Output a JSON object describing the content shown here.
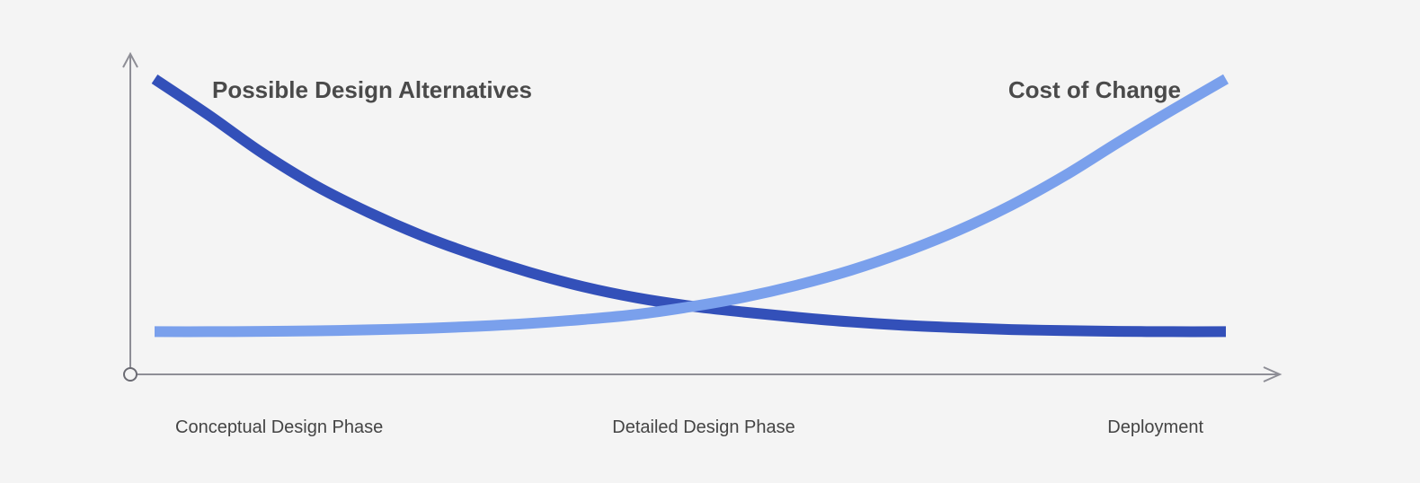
{
  "chart_data": {
    "type": "line",
    "title": "",
    "xlabel": "",
    "ylabel": "",
    "categories": [
      "Conceptual Design Phase",
      "Detailed Design Phase",
      "Deployment"
    ],
    "grid": false,
    "legend": "none",
    "x": [
      0,
      0.05,
      0.1,
      0.15,
      0.2,
      0.25,
      0.3,
      0.35,
      0.4,
      0.45,
      0.5,
      0.55,
      0.6,
      0.65,
      0.7,
      0.75,
      0.8,
      0.85,
      0.9,
      0.95,
      1
    ],
    "xlim": [
      0,
      1
    ],
    "ylim": [
      0,
      1
    ],
    "series": [
      {
        "name": "Possible Design Alternatives",
        "color": "#3350b9",
        "values": [
          1.0,
          0.865,
          0.722,
          0.598,
          0.496,
          0.408,
          0.334,
          0.27,
          0.216,
          0.174,
          0.143,
          0.12,
          0.1,
          0.083,
          0.07,
          0.061,
          0.054,
          0.05,
          0.047,
          0.046,
          0.046
        ]
      },
      {
        "name": "Cost of Change",
        "color": "#7aa0ec",
        "values": [
          0.046,
          0.046,
          0.047,
          0.049,
          0.053,
          0.058,
          0.066,
          0.077,
          0.092,
          0.111,
          0.14,
          0.176,
          0.222,
          0.278,
          0.347,
          0.428,
          0.524,
          0.636,
          0.762,
          0.883,
          1.0
        ]
      }
    ]
  }
}
